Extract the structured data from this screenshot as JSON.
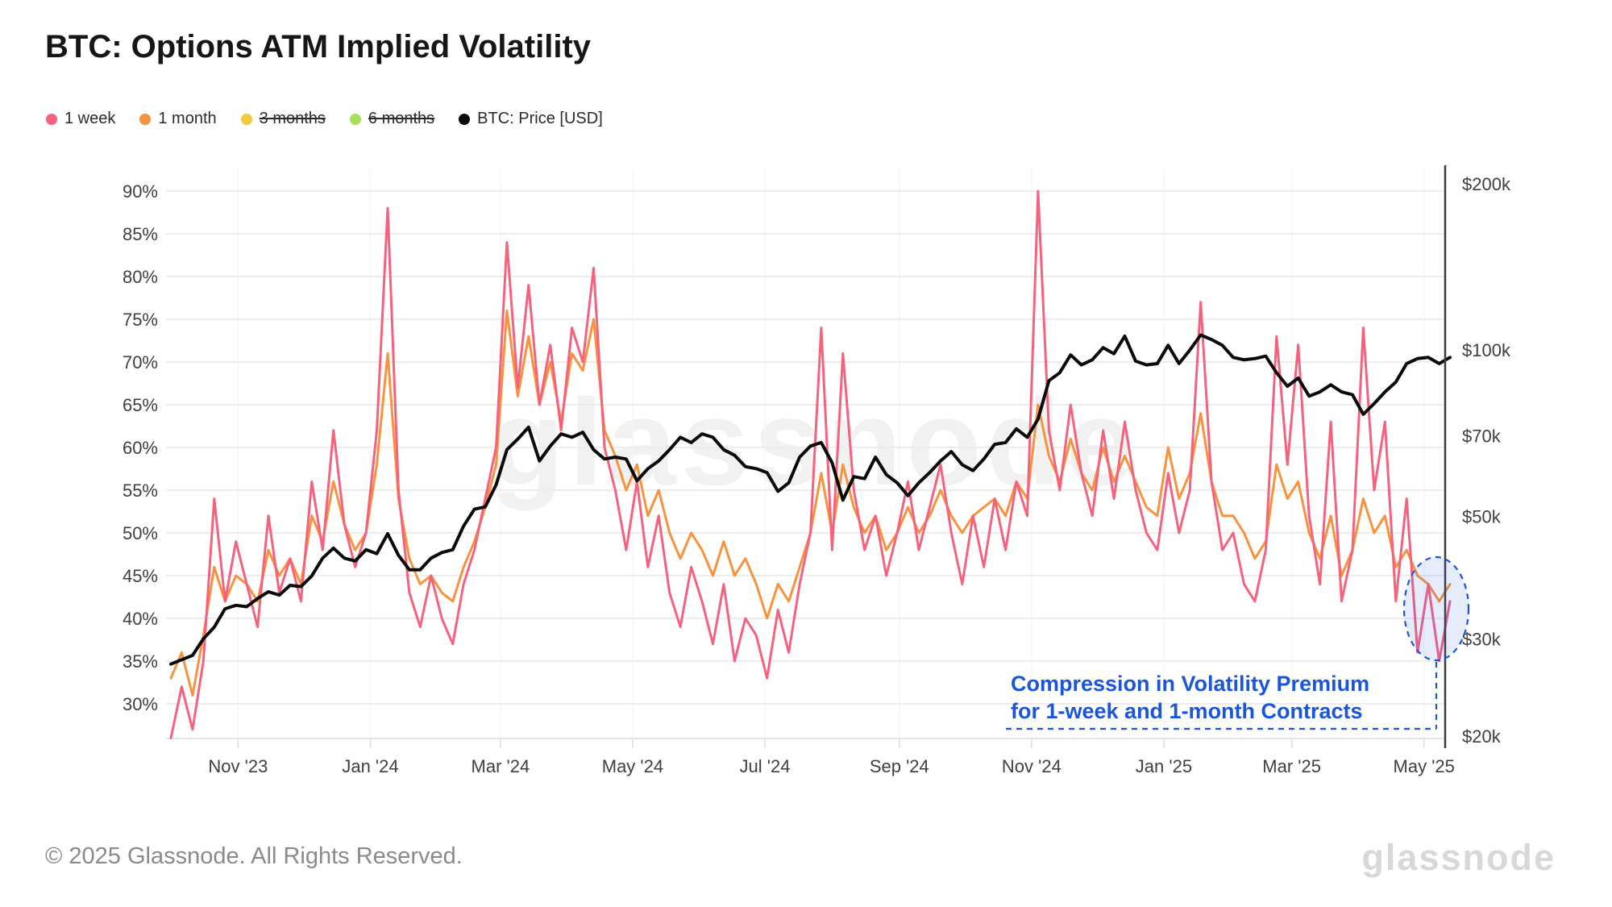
{
  "title": "BTC: Options ATM Implied Volatility",
  "legend": {
    "items": [
      {
        "label": "1 week",
        "color": "#f6627e",
        "disabled": false
      },
      {
        "label": "1 month",
        "color": "#f9923c",
        "disabled": false
      },
      {
        "label": "3 months",
        "color": "#f2c83c",
        "disabled": true
      },
      {
        "label": "6 months",
        "color": "#a8e05a",
        "disabled": true
      },
      {
        "label": "BTC: Price [USD]",
        "color": "#0a0a0a",
        "disabled": false
      }
    ]
  },
  "watermark": "glassnode",
  "annotation": {
    "line1": "Compression in Volatility Premium",
    "line2": "for 1-week and 1-month Contracts",
    "color": "#1a56db"
  },
  "footer": {
    "copyright": "© 2025 Glassnode. All Rights Reserved.",
    "logo": "glassnode"
  },
  "chart_data": {
    "type": "line",
    "title": "BTC: Options ATM Implied Volatility",
    "x_unit": "days since 2023-10-01",
    "x_domain": [
      0,
      590
    ],
    "sample_step_days": 5,
    "grid": true,
    "legend_position": "top-left",
    "x_ticks": [
      {
        "day": 31,
        "label": "Nov '23"
      },
      {
        "day": 92,
        "label": "Jan '24"
      },
      {
        "day": 152,
        "label": "Mar '24"
      },
      {
        "day": 213,
        "label": "May '24"
      },
      {
        "day": 274,
        "label": "Jul '24"
      },
      {
        "day": 336,
        "label": "Sep '24"
      },
      {
        "day": 397,
        "label": "Nov '24"
      },
      {
        "day": 458,
        "label": "Jan '25"
      },
      {
        "day": 517,
        "label": "Mar '25"
      },
      {
        "day": 578,
        "label": "May '25"
      }
    ],
    "y_left": {
      "unit": "%",
      "range": [
        25,
        92
      ],
      "ticks": [
        {
          "value": 90,
          "label": "90%"
        },
        {
          "value": 85,
          "label": "85%"
        },
        {
          "value": 80,
          "label": "80%"
        },
        {
          "value": 75,
          "label": "75%"
        },
        {
          "value": 70,
          "label": "70%"
        },
        {
          "value": 65,
          "label": "65%"
        },
        {
          "value": 60,
          "label": "60%"
        },
        {
          "value": 55,
          "label": "55%"
        },
        {
          "value": 50,
          "label": "50%"
        },
        {
          "value": 45,
          "label": "45%"
        },
        {
          "value": 40,
          "label": "40%"
        },
        {
          "value": 35,
          "label": "35%"
        },
        {
          "value": 30,
          "label": "30%"
        }
      ]
    },
    "y_right": {
      "unit": "USD",
      "scale": "log",
      "range_k": [
        20,
        200
      ],
      "ticks": [
        {
          "value": 200,
          "label": "$200k"
        },
        {
          "value": 100,
          "label": "$100k"
        },
        {
          "value": 70,
          "label": "$70k"
        },
        {
          "value": 50,
          "label": "$50k"
        },
        {
          "value": 30,
          "label": "$30k"
        },
        {
          "value": 20,
          "label": "$20k"
        }
      ]
    },
    "series": [
      {
        "name": "1 week",
        "axis": "left",
        "color": "#f6627e",
        "visible": true,
        "values": [
          26,
          32,
          27,
          35,
          54,
          42,
          49,
          44,
          39,
          52,
          43,
          47,
          42,
          56,
          48,
          62,
          51,
          46,
          50,
          62,
          88,
          55,
          43,
          39,
          45,
          40,
          37,
          44,
          48,
          54,
          60,
          84,
          67,
          79,
          65,
          72,
          62,
          74,
          70,
          81,
          60,
          55,
          48,
          56,
          46,
          52,
          43,
          39,
          46,
          42,
          37,
          44,
          35,
          40,
          38,
          33,
          41,
          36,
          44,
          50,
          74,
          48,
          71,
          55,
          48,
          52,
          45,
          50,
          56,
          48,
          53,
          58,
          50,
          44,
          52,
          46,
          54,
          48,
          56,
          52,
          90,
          62,
          55,
          65,
          57,
          52,
          62,
          54,
          63,
          55,
          50,
          48,
          57,
          50,
          55,
          77,
          56,
          48,
          50,
          44,
          42,
          48,
          73,
          58,
          72,
          52,
          44,
          63,
          42,
          48,
          74,
          55,
          63,
          42,
          54,
          36,
          44,
          35,
          42
        ]
      },
      {
        "name": "1 month",
        "axis": "left",
        "color": "#f9923c",
        "visible": true,
        "values": [
          33,
          36,
          31,
          38,
          46,
          42,
          45,
          44,
          42,
          48,
          45,
          47,
          44,
          52,
          49,
          56,
          51,
          48,
          50,
          58,
          71,
          54,
          47,
          44,
          45,
          43,
          42,
          46,
          49,
          53,
          58,
          76,
          66,
          73,
          65,
          70,
          63,
          71,
          69,
          75,
          62,
          59,
          55,
          58,
          52,
          55,
          50,
          47,
          50,
          48,
          45,
          49,
          45,
          47,
          44,
          40,
          44,
          42,
          46,
          50,
          57,
          50,
          58,
          53,
          50,
          52,
          48,
          50,
          53,
          50,
          52,
          55,
          52,
          50,
          52,
          53,
          54,
          52,
          56,
          54,
          65,
          59,
          56,
          61,
          57,
          55,
          60,
          56,
          59,
          56,
          53,
          52,
          60,
          54,
          57,
          64,
          56,
          52,
          52,
          50,
          47,
          49,
          58,
          54,
          56,
          50,
          47,
          52,
          45,
          48,
          54,
          50,
          52,
          46,
          48,
          45,
          44,
          42,
          44
        ]
      },
      {
        "name": "3 months",
        "axis": "left",
        "color": "#f2c83c",
        "visible": false,
        "values": []
      },
      {
        "name": "6 months",
        "axis": "left",
        "color": "#a8e05a",
        "visible": false,
        "values": []
      },
      {
        "name": "BTC: Price [USD]",
        "axis": "right",
        "unit": "USD thousands",
        "color": "#0a0a0a",
        "visible": true,
        "values": [
          27,
          27.5,
          28,
          30,
          31.5,
          34,
          34.5,
          34.3,
          35.5,
          36.5,
          36,
          37.5,
          37.3,
          39,
          42,
          43.8,
          42,
          41.5,
          43.5,
          42.8,
          46.5,
          42.5,
          40,
          40,
          42,
          43,
          43.5,
          48,
          51.5,
          52,
          57,
          66,
          69,
          72.5,
          63,
          67,
          70.5,
          69.5,
          71,
          66,
          63.5,
          64,
          63.5,
          58,
          61,
          63,
          66,
          69.5,
          68,
          70.5,
          69.5,
          66,
          64.5,
          61.5,
          61,
          60,
          55.5,
          57.5,
          64,
          67,
          68,
          62.5,
          53.5,
          59,
          58.5,
          64,
          59.5,
          57.5,
          54.5,
          57.5,
          60,
          63,
          65.5,
          62,
          60.5,
          63.5,
          67.5,
          68,
          72,
          69.5,
          75,
          88,
          91,
          98,
          94,
          96,
          101,
          98.5,
          106,
          95.5,
          94,
          94.5,
          102,
          94.5,
          100,
          106.5,
          104.5,
          102,
          97,
          96,
          96.5,
          97.5,
          91,
          86,
          89,
          82.5,
          84,
          86.5,
          84,
          83,
          76.5,
          80,
          84,
          87.5,
          94.5,
          96.5,
          97,
          94.5,
          97
        ]
      }
    ],
    "annotations": [
      {
        "type": "ellipse-highlight",
        "text": "Compression in Volatility Premium for 1-week and 1-month Contracts",
        "color": "#1a56db",
        "region": "last data points of 1-week and 1-month series, ~35-45% IV, May 2025"
      }
    ]
  }
}
